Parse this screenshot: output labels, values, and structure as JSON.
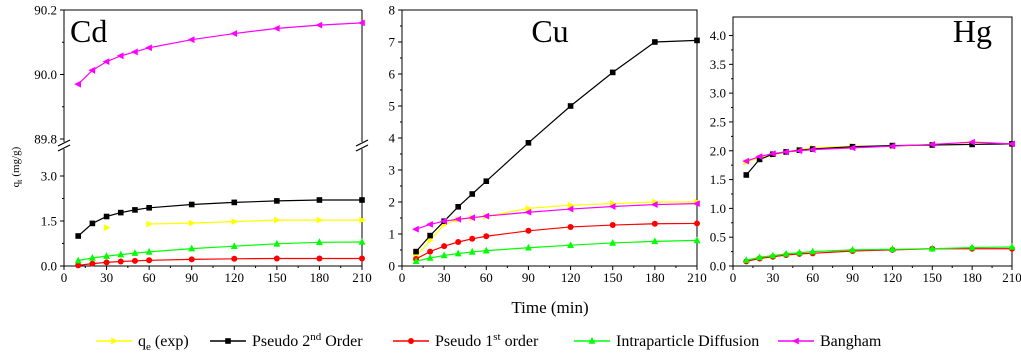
{
  "figure": {
    "common_xlabel": "Time (min)",
    "common_ylabel": "q",
    "common_ylabel_sub": "t",
    "common_ylabel_unit": "(mg/g)"
  },
  "legend": [
    {
      "key": "qe_exp",
      "main": "q",
      "sub": "e",
      "sup": "",
      "rest": " (exp)",
      "color": "#ffff00",
      "marker": "triangle-right"
    },
    {
      "key": "pso",
      "main": "Pseudo 2",
      "sub": "",
      "sup": "nd",
      "rest": " Order",
      "color": "#000000",
      "marker": "square"
    },
    {
      "key": "pfo",
      "main": "Pseudo 1",
      "sub": "",
      "sup": "st",
      "rest": " order",
      "color": "#ff0000",
      "marker": "circle"
    },
    {
      "key": "ipd",
      "main": "Intraparticle Diffusion",
      "sub": "",
      "sup": "",
      "rest": "",
      "color": "#00ff00",
      "marker": "triangle-up"
    },
    {
      "key": "bangham",
      "main": "Bangham",
      "sub": "",
      "sup": "",
      "rest": "",
      "color": "#ff00ff",
      "marker": "triangle-left"
    }
  ],
  "chart_data": [
    {
      "type": "line",
      "title": "Cd",
      "xlabel": "",
      "ylabel": "",
      "xlim": [
        0,
        210
      ],
      "xticks": [
        "0",
        "30",
        "60",
        "90",
        "120",
        "150",
        "180",
        "210"
      ],
      "axis_break": true,
      "ylim_lower": [
        0,
        3.8
      ],
      "yticks_lower": [
        "0.0",
        "1.5",
        "3.0"
      ],
      "ylim_upper": [
        89.8,
        90.2
      ],
      "yticks_upper": [
        "89.8",
        "90.0",
        "90.2"
      ],
      "series": [
        {
          "key": "qe_exp",
          "x": [
            30,
            60,
            90,
            120,
            150,
            180,
            210
          ],
          "y": [
            1.28,
            1.4,
            1.43,
            1.48,
            1.53,
            1.53,
            1.53
          ],
          "connect_from": 1
        },
        {
          "key": "pso",
          "x": [
            10,
            20,
            30,
            40,
            50,
            60,
            90,
            120,
            150,
            180,
            210
          ],
          "y": [
            1.0,
            1.42,
            1.65,
            1.78,
            1.87,
            1.94,
            2.05,
            2.12,
            2.17,
            2.2,
            2.2
          ]
        },
        {
          "key": "pfo",
          "x": [
            10,
            20,
            30,
            40,
            50,
            60,
            90,
            120,
            150,
            180,
            210
          ],
          "y": [
            0.02,
            0.08,
            0.12,
            0.15,
            0.17,
            0.19,
            0.22,
            0.24,
            0.25,
            0.25,
            0.25
          ]
        },
        {
          "key": "ipd",
          "x": [
            10,
            20,
            30,
            40,
            50,
            60,
            90,
            120,
            150,
            180,
            210
          ],
          "y": [
            0.18,
            0.27,
            0.33,
            0.38,
            0.43,
            0.47,
            0.58,
            0.66,
            0.74,
            0.79,
            0.8
          ]
        },
        {
          "key": "bangham",
          "x": [
            10,
            20,
            30,
            40,
            50,
            60,
            90,
            120,
            150,
            180,
            210
          ],
          "y": [
            89.97,
            90.013,
            90.04,
            90.058,
            90.07,
            90.083,
            90.108,
            90.127,
            90.143,
            90.153,
            90.16
          ],
          "panel": "upper"
        }
      ]
    },
    {
      "type": "line",
      "title": "Cu",
      "xlabel": "Time (min)",
      "ylabel": "",
      "xlim": [
        0,
        210
      ],
      "xticks": [
        "0",
        "30",
        "60",
        "90",
        "120",
        "150",
        "180",
        "210"
      ],
      "ylim": [
        0,
        8
      ],
      "yticks": [
        "0",
        "1",
        "2",
        "3",
        "4",
        "5",
        "6",
        "7",
        "8"
      ],
      "series": [
        {
          "key": "qe_exp",
          "x": [
            10,
            20,
            30,
            40,
            50,
            60,
            90,
            120,
            150,
            180,
            210
          ],
          "y": [
            0.3,
            0.8,
            1.3,
            1.45,
            1.5,
            1.55,
            1.8,
            1.9,
            1.95,
            2.0,
            2.0
          ]
        },
        {
          "key": "pso",
          "x": [
            10,
            20,
            30,
            40,
            50,
            60,
            90,
            120,
            150,
            180,
            210
          ],
          "y": [
            0.45,
            0.95,
            1.4,
            1.85,
            2.25,
            2.65,
            3.85,
            5.0,
            6.05,
            7.0,
            7.05
          ]
        },
        {
          "key": "pfo",
          "x": [
            10,
            20,
            30,
            40,
            50,
            60,
            90,
            120,
            150,
            180,
            210
          ],
          "y": [
            0.22,
            0.45,
            0.62,
            0.75,
            0.85,
            0.93,
            1.1,
            1.22,
            1.28,
            1.32,
            1.33
          ]
        },
        {
          "key": "ipd",
          "x": [
            10,
            20,
            30,
            40,
            50,
            60,
            90,
            120,
            150,
            180,
            210
          ],
          "y": [
            0.15,
            0.25,
            0.33,
            0.39,
            0.44,
            0.48,
            0.57,
            0.65,
            0.72,
            0.77,
            0.8
          ]
        },
        {
          "key": "bangham",
          "x": [
            10,
            20,
            30,
            40,
            50,
            60,
            90,
            120,
            150,
            180,
            210
          ],
          "y": [
            1.15,
            1.3,
            1.4,
            1.46,
            1.51,
            1.56,
            1.68,
            1.78,
            1.86,
            1.92,
            1.95
          ]
        }
      ]
    },
    {
      "type": "line",
      "title": "Hg",
      "xlabel": "",
      "ylabel": "",
      "xlim": [
        0,
        210
      ],
      "xticks": [
        "0",
        "30",
        "60",
        "90",
        "120",
        "150",
        "180",
        "210"
      ],
      "ylim": [
        0,
        4.2
      ],
      "yticks": [
        "0.0",
        "0.5",
        "1.0",
        "1.5",
        "2.0",
        "2.5",
        "3.0",
        "3.5",
        "4.0"
      ],
      "series": [
        {
          "key": "qe_exp",
          "x": [
            10,
            20,
            30,
            40,
            50,
            60,
            90,
            120,
            150,
            180,
            210
          ],
          "y": [
            1.8,
            1.88,
            1.93,
            1.98,
            2.02,
            2.05,
            2.08,
            2.08,
            2.1,
            2.12,
            2.12
          ]
        },
        {
          "key": "pso",
          "x": [
            10,
            20,
            30,
            40,
            50,
            60,
            90,
            120,
            150,
            180,
            210
          ],
          "y": [
            1.58,
            1.85,
            1.94,
            1.98,
            2.01,
            2.03,
            2.07,
            2.09,
            2.1,
            2.11,
            2.12
          ]
        },
        {
          "key": "pfo",
          "x": [
            10,
            20,
            30,
            40,
            50,
            60,
            90,
            120,
            150,
            180,
            210
          ],
          "y": [
            0.08,
            0.13,
            0.16,
            0.19,
            0.21,
            0.22,
            0.26,
            0.28,
            0.3,
            0.3,
            0.3
          ]
        },
        {
          "key": "ipd",
          "x": [
            10,
            20,
            30,
            40,
            50,
            60,
            90,
            120,
            150,
            180,
            210
          ],
          "y": [
            0.1,
            0.15,
            0.18,
            0.21,
            0.23,
            0.25,
            0.28,
            0.29,
            0.3,
            0.32,
            0.33
          ]
        },
        {
          "key": "bangham",
          "x": [
            10,
            20,
            30,
            40,
            50,
            60,
            90,
            120,
            150,
            180,
            210
          ],
          "y": [
            1.82,
            1.9,
            1.95,
            1.98,
            2.0,
            2.02,
            2.05,
            2.08,
            2.11,
            2.15,
            2.12
          ]
        }
      ]
    }
  ]
}
